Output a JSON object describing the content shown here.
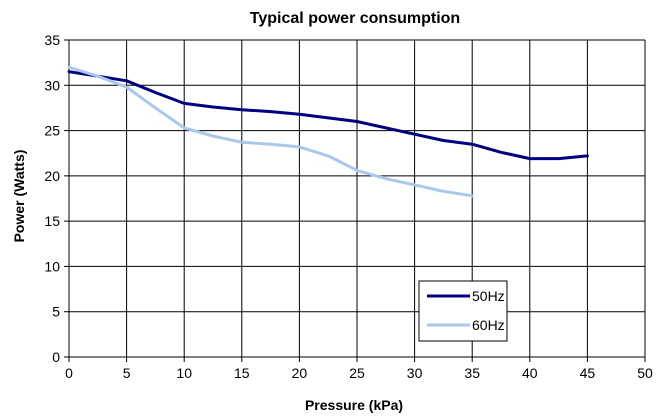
{
  "chart_data": {
    "type": "line",
    "title": "Typical power consumption",
    "xlabel": "Pressure (kPa)",
    "ylabel": "Power (Watts)",
    "xlim": [
      0,
      50
    ],
    "ylim": [
      0,
      35
    ],
    "x_ticks": [
      0,
      5,
      10,
      15,
      20,
      25,
      30,
      35,
      40,
      45,
      50
    ],
    "y_ticks": [
      0,
      5,
      10,
      15,
      20,
      25,
      30,
      35
    ],
    "grid": true,
    "legend_position": "bottom-right",
    "series": [
      {
        "name": "50Hz",
        "color": "#000080",
        "x": [
          0,
          2.5,
          5,
          7.5,
          10,
          12.5,
          15,
          17.5,
          20,
          22.5,
          25,
          27.5,
          30,
          32.5,
          35,
          37.5,
          40,
          42.5,
          45
        ],
        "y": [
          31.5,
          31.0,
          30.5,
          29.2,
          28.0,
          27.6,
          27.3,
          27.1,
          26.8,
          26.4,
          26.0,
          25.3,
          24.6,
          23.9,
          23.5,
          22.6,
          21.9,
          21.9,
          22.2
        ]
      },
      {
        "name": "60Hz",
        "color": "#a9c9ec",
        "x": [
          0,
          2.5,
          5,
          7.5,
          10,
          12.5,
          15,
          17.5,
          20,
          22.5,
          25,
          27.5,
          30,
          32.5,
          35
        ],
        "y": [
          32.0,
          31.0,
          29.8,
          27.5,
          25.3,
          24.4,
          23.7,
          23.5,
          23.2,
          22.2,
          20.6,
          19.7,
          19.0,
          18.3,
          17.8
        ]
      }
    ]
  }
}
